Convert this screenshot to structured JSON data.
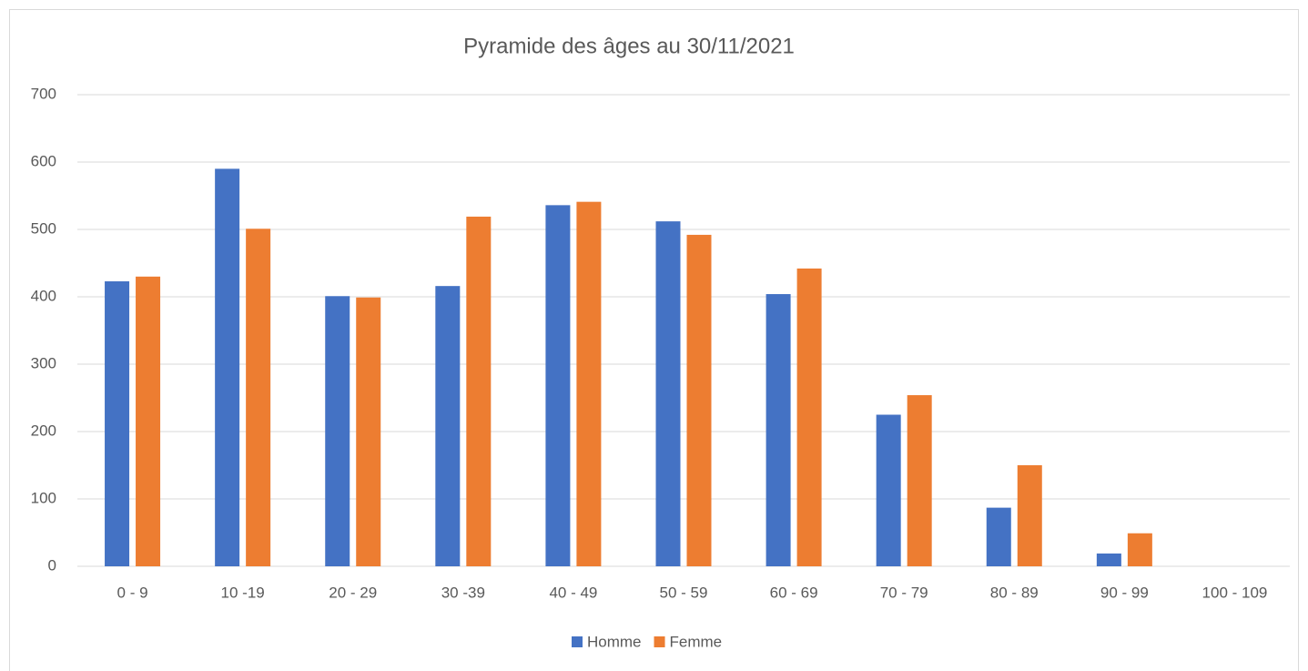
{
  "chart_data": {
    "type": "bar",
    "title": "Pyramide des âges au 30/11/2021",
    "categories": [
      "0 - 9",
      "10 -19",
      "20 - 29",
      "30 -39",
      "40 - 49",
      "50 - 59",
      "60 - 69",
      "70 - 79",
      "80 - 89",
      "90 - 99",
      "100 - 109"
    ],
    "series": [
      {
        "name": "Homme",
        "color": "#4472c4",
        "values": [
          423,
          590,
          401,
          416,
          536,
          512,
          404,
          225,
          87,
          19,
          0
        ]
      },
      {
        "name": "Femme",
        "color": "#ed7d31",
        "values": [
          430,
          501,
          399,
          519,
          541,
          492,
          442,
          254,
          150,
          49,
          0
        ]
      }
    ],
    "ylim": [
      0,
      700
    ],
    "yticks": [
      0,
      100,
      200,
      300,
      400,
      500,
      600,
      700
    ],
    "grid": true,
    "legend": "bottom"
  }
}
